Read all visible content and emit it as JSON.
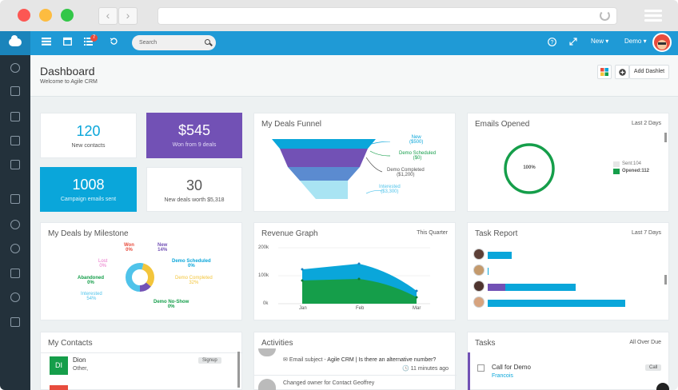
{
  "topbar": {
    "search_placeholder": "Search",
    "notification_count": "7",
    "new_label": "New ▾",
    "user_label": "Demo ▾"
  },
  "header": {
    "title": "Dashboard",
    "subtitle": "Welcome to Agile CRM",
    "add_dashlet_label": "Add Dashlet"
  },
  "stats": [
    {
      "value": "120",
      "label": "New contacts"
    },
    {
      "value": "$545",
      "label": "Won from 9 deals"
    },
    {
      "value": "1008",
      "label": "Campaign emails sent"
    },
    {
      "value": "30",
      "label": "New deals worth $5,318"
    }
  ],
  "funnel": {
    "title": "My Deals Funnel",
    "labels": [
      {
        "name": "New",
        "value": "($500)",
        "color": "#0aa6da"
      },
      {
        "name": "Demo Scheduled",
        "value": "($0)",
        "color": "#159e4a"
      },
      {
        "name": "Demo Completed",
        "value": "($1,200)",
        "color": "#555555"
      },
      {
        "name": "Interested",
        "value": "($3,300)",
        "color": "#4fc3ea"
      }
    ]
  },
  "emails": {
    "title": "Emails Opened",
    "range": "Last 2 Days",
    "percent": "100%",
    "sent": "Sent:104",
    "opened": "Opened:112"
  },
  "milestone": {
    "title": "My Deals by Milestone",
    "labels": [
      {
        "name": "Won",
        "pct": "0%",
        "color": "#e84c3d"
      },
      {
        "name": "New",
        "pct": "14%",
        "color": "#7251b5"
      },
      {
        "name": "Lost",
        "pct": "0%",
        "color": "#e86fc6"
      },
      {
        "name": "Demo Scheduled",
        "pct": "0%",
        "color": "#0aa6da"
      },
      {
        "name": "Abandoned",
        "pct": "0%",
        "color": "#159e4a"
      },
      {
        "name": "Demo Completed",
        "pct": "32%",
        "color": "#f3c53b"
      },
      {
        "name": "Interested",
        "pct": "54%",
        "color": "#4fc3ea"
      },
      {
        "name": "Demo No-Show",
        "pct": "0%",
        "color": "#159e4a"
      }
    ]
  },
  "revenue": {
    "title": "Revenue Graph",
    "range": "This Quarter",
    "yticks": [
      "200k",
      "100k",
      "0k"
    ],
    "xticks": [
      "Jan",
      "Feb",
      "Mar"
    ]
  },
  "tasks_report": {
    "title": "Task Report",
    "range": "Last 7 Days",
    "rows": [
      {
        "purple": 0.0,
        "blue": 0.17
      },
      {
        "purple": 0.0,
        "blue": 0.0
      },
      {
        "purple": 0.12,
        "blue": 0.47
      },
      {
        "purple": 0.0,
        "blue": 0.94
      }
    ]
  },
  "contacts": {
    "title": "My Contacts",
    "rows": [
      {
        "initials": "DI",
        "name": "Dion",
        "company": "Other,",
        "tag": "Signup"
      }
    ]
  },
  "activities": {
    "title": "Activities",
    "rows": [
      {
        "prefix": "Email subject - ",
        "highlight": "Agile CRM | Is there an alternative number?",
        "time": "11 minutes ago"
      },
      {
        "text": "Changed owner for Contact Geoffrey"
      }
    ]
  },
  "tasks": {
    "title": "Tasks",
    "range": "All Over Due",
    "rows": [
      {
        "name": "Call for Demo",
        "person": "Francois",
        "tag": "Call"
      }
    ]
  },
  "colors": {
    "brand": "#1f9ad6",
    "sidebar": "#23313b",
    "purple": "#7251b5",
    "blue": "#0aa6da",
    "green": "#159e4a"
  }
}
